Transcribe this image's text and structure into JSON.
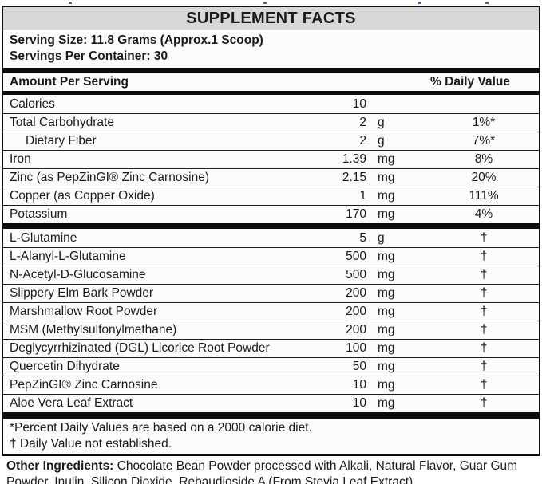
{
  "title": "SUPPLEMENT FACTS",
  "serving": {
    "size_line": "Serving Size: 11.8 Grams (Approx.1 Scoop)",
    "per_container_line": "Servings Per Container: 30"
  },
  "header": {
    "amount_label": "Amount Per Serving",
    "dv_label": "% Daily Value"
  },
  "nutrient_rows": [
    {
      "name": "Calories",
      "amount": "10",
      "unit": "",
      "dv": "",
      "indent": false
    },
    {
      "name": "Total Carbohydrate",
      "amount": "2",
      "unit": "g",
      "dv": "1%*",
      "indent": false
    },
    {
      "name": "Dietary Fiber",
      "amount": "2",
      "unit": "g",
      "dv": "7%*",
      "indent": true
    },
    {
      "name": "Iron",
      "amount": "1.39",
      "unit": "mg",
      "dv": "8%",
      "indent": false
    },
    {
      "name": "Zinc (as PepZinGI® Zinc Carnosine)",
      "amount": "2.15",
      "unit": "mg",
      "dv": "20%",
      "indent": false
    },
    {
      "name": "Copper (as Copper Oxide)",
      "amount": "1",
      "unit": "mg",
      "dv": "111%",
      "indent": false
    },
    {
      "name": "Potassium",
      "amount": "170",
      "unit": "mg",
      "dv": "4%",
      "indent": false
    }
  ],
  "ingredient_rows": [
    {
      "name": "L-Glutamine",
      "amount": "5",
      "unit": "g",
      "dv": "†",
      "indent": false
    },
    {
      "name": "L-Alanyl-L-Glutamine",
      "amount": "500",
      "unit": "mg",
      "dv": "†",
      "indent": false
    },
    {
      "name": "N-Acetyl-D-Glucosamine",
      "amount": "500",
      "unit": "mg",
      "dv": "†",
      "indent": false
    },
    {
      "name": "Slippery Elm Bark Powder",
      "amount": "200",
      "unit": "mg",
      "dv": "†",
      "indent": false
    },
    {
      "name": "Marshmallow Root Powder",
      "amount": "200",
      "unit": "mg",
      "dv": "†",
      "indent": false
    },
    {
      "name": "MSM (Methylsulfonylmethane)",
      "amount": "200",
      "unit": "mg",
      "dv": "†",
      "indent": false
    },
    {
      "name": "Deglycyrrhizinated (DGL) Licorice Root Powder",
      "amount": "100",
      "unit": "mg",
      "dv": "†",
      "indent": false
    },
    {
      "name": "Quercetin Dihydrate",
      "amount": "50",
      "unit": "mg",
      "dv": "†",
      "indent": false
    },
    {
      "name": "PepZinGI® Zinc Carnosine",
      "amount": "10",
      "unit": "mg",
      "dv": "†",
      "indent": false
    },
    {
      "name": "Aloe Vera Leaf Extract",
      "amount": "10",
      "unit": "mg",
      "dv": "†",
      "indent": false
    }
  ],
  "footnotes": [
    "*Percent Daily Values are based on a 2000 calorie diet.",
    "† Daily Value not established."
  ],
  "other_ingredients": {
    "label": "Other Ingredients:",
    "text": " Chocolate Bean Powder processed with Alkali, Natural Flavor, Guar Gum Powder, Inulin, Silicon Dioxide, Rebaudioside A (From Stevia Leaf Extract)."
  },
  "colors": {
    "banner_gray": "#d8d8d8",
    "bar_black": "#0d0d0d",
    "label_background": "#fcfcfc",
    "bottom_strip_gray": "#e4e4e2"
  }
}
